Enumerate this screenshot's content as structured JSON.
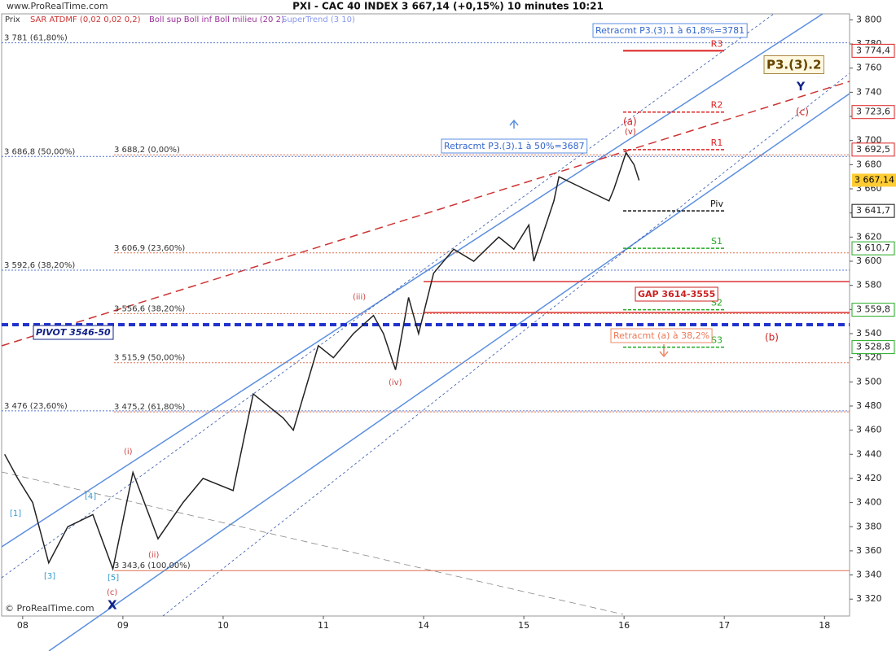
{
  "chart_data": {
    "type": "line",
    "site": "www.ProRealTime.com",
    "title": "PXI - CAC 40 INDEX    3 667,14 (+0,15%)    10 minutes  10:21",
    "copyright": "© ProRealTime.com",
    "indicators": [
      {
        "name": "Prix",
        "color": "#333333"
      },
      {
        "name": "SAR ATDMF (0,02 0,02 0,2)",
        "color": "#cc3333"
      },
      {
        "name": "Boll sup Boll inf Boll milieu (20 2)",
        "color": "#993399"
      },
      {
        "name": "SuperTrend (3 10)",
        "color": "#8899ee"
      }
    ],
    "xlim": [
      -0.21,
      8.25
    ],
    "xticks": [
      {
        "value": 0,
        "label": "08"
      },
      {
        "value": 1,
        "label": "09"
      },
      {
        "value": 2,
        "label": "10"
      },
      {
        "value": 3,
        "label": "11"
      },
      {
        "value": 4,
        "label": "14"
      },
      {
        "value": 5,
        "label": "15"
      },
      {
        "value": 6,
        "label": "16"
      },
      {
        "value": 7,
        "label": "17"
      },
      {
        "value": 8,
        "label": "18"
      }
    ],
    "ylim": [
      3306,
      3805
    ],
    "yticks": [
      {
        "value": 3320,
        "label": "3 320"
      },
      {
        "value": 3340,
        "label": "3 340"
      },
      {
        "value": 3360,
        "label": "3 360"
      },
      {
        "value": 3380,
        "label": "3 380"
      },
      {
        "value": 3400,
        "label": "3 400"
      },
      {
        "value": 3420,
        "label": "3 420"
      },
      {
        "value": 3440,
        "label": "3 440"
      },
      {
        "value": 3460,
        "label": "3 460"
      },
      {
        "value": 3480,
        "label": "3 480"
      },
      {
        "value": 3500,
        "label": "3 500"
      },
      {
        "value": 3520,
        "label": "3 520"
      },
      {
        "value": 3540,
        "label": "3 540"
      },
      {
        "value": 3560,
        "label": "3 560"
      },
      {
        "value": 3580,
        "label": "3 580"
      },
      {
        "value": 3600,
        "label": "3 600"
      },
      {
        "value": 3620,
        "label": "3 620"
      },
      {
        "value": 3640,
        "label": "3 640"
      },
      {
        "value": 3660,
        "label": "3 660"
      },
      {
        "value": 3680,
        "label": "3 680"
      },
      {
        "value": 3700,
        "label": "3 700"
      },
      {
        "value": 3720,
        "label": "3 720"
      },
      {
        "value": 3740,
        "label": "3 740"
      },
      {
        "value": 3760,
        "label": "3 760"
      },
      {
        "value": 3780,
        "label": "3 780"
      },
      {
        "value": 3800,
        "label": "3 800"
      }
    ],
    "series": [
      {
        "name": "Prix",
        "color": "#222222",
        "x": [
          -0.18,
          -0.05,
          0.1,
          0.26,
          0.45,
          0.7,
          0.9,
          1.1,
          1.35,
          1.6,
          1.8,
          2.1,
          2.3,
          2.6,
          2.7,
          2.95,
          3.1,
          3.3,
          3.5,
          3.6,
          3.72,
          3.85,
          3.95,
          4.1,
          4.3,
          4.5,
          4.75,
          4.9,
          5.05,
          5.1,
          5.3,
          5.35,
          5.6,
          5.85,
          5.9,
          6.02,
          6.1,
          6.15
        ],
        "values": [
          3440,
          3420,
          3400,
          3350,
          3380,
          3390,
          3345,
          3425,
          3370,
          3400,
          3420,
          3410,
          3490,
          3470,
          3460,
          3530,
          3520,
          3540,
          3555,
          3540,
          3510,
          3570,
          3540,
          3590,
          3610,
          3600,
          3620,
          3610,
          3630,
          3600,
          3650,
          3670,
          3660,
          3650,
          3660,
          3690,
          3680,
          3667
        ]
      }
    ],
    "last_price": {
      "value": 3667.14,
      "label": "3 667,14",
      "color": "#ffcc33"
    },
    "fib_levels": [
      {
        "value": 3781,
        "label": "3 781 (61,80%)",
        "color": "#5577cc"
      },
      {
        "value": 3686.8,
        "label": "3 686,8 (50,00%)",
        "color": "#5577cc"
      },
      {
        "value": 3688.2,
        "label": "3 688,2 (0,00%)",
        "color": "#e07050"
      },
      {
        "value": 3606.9,
        "label": "3 606,9 (23,60%)",
        "color": "#e07050"
      },
      {
        "value": 3592.6,
        "label": "3 592,6 (38,20%)",
        "color": "#5577cc"
      },
      {
        "value": 3556.6,
        "label": "3 556,6 (38,20%)",
        "color": "#e07050"
      },
      {
        "value": 3515.9,
        "label": "3 515,9 (50,00%)",
        "color": "#e07050"
      },
      {
        "value": 3476,
        "label": "3 476 (23,60%)",
        "color": "#5577cc"
      },
      {
        "value": 3475.2,
        "label": "3 475,2 (61,80%)",
        "color": "#e07050"
      },
      {
        "value": 3343.6,
        "label": "3 343,6 (100,00%)",
        "color": "#e07050"
      }
    ],
    "pivots": [
      {
        "name": "R3",
        "value": 3774.4,
        "label": "3 774,4",
        "color": "#dd2222"
      },
      {
        "name": "R2",
        "value": 3723.6,
        "label": "3 723,6",
        "color": "#dd2222"
      },
      {
        "name": "R1",
        "value": 3692.5,
        "label": "3 692,5",
        "color": "#dd2222"
      },
      {
        "name": "Piv",
        "value": 3641.7,
        "label": "3 641,7",
        "color": "#111111"
      },
      {
        "name": "S1",
        "value": 3610.7,
        "label": "3 610,7",
        "color": "#22aa22"
      },
      {
        "name": "S2",
        "value": 3559.8,
        "label": "3 559,8",
        "color": "#22aa22"
      },
      {
        "name": "S3",
        "value": 3528.8,
        "label": "3 528,8",
        "color": "#22aa22"
      }
    ],
    "annotations": [
      "Retracmt P3.(3).1 à 61,8%=3781",
      "Retracmt P3.(3).1 à 50%=3687",
      "P3.(3).2",
      "Y",
      "(c)",
      "(a)",
      "(v)",
      "GAP 3614-3555",
      "(b)",
      "Retracmt (a) à 38,2%",
      "PIVOT 3546-50",
      "(iii)",
      "(iv)",
      "(i)",
      "(ii)",
      "[1]",
      "[3]",
      "[4]",
      "[5]",
      "(c)",
      "X"
    ]
  }
}
